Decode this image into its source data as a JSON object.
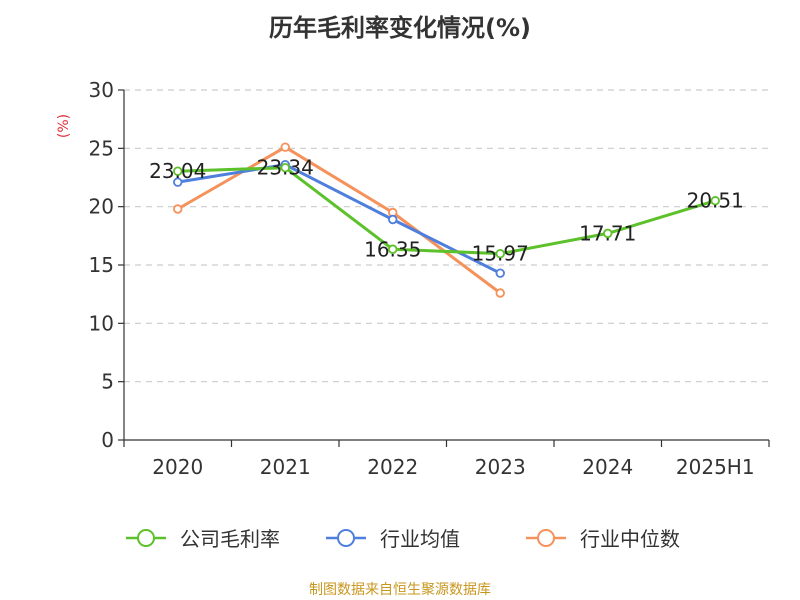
{
  "title": "历年毛利率变化情况(%)",
  "source": "制图数据来自恒生聚源数据库",
  "colors": {
    "axis": "#333333",
    "grid": "#cccccc",
    "ylabel": "#e0303a",
    "source": "#c8961e"
  },
  "chart_data": {
    "type": "line",
    "title": "历年毛利率变化情况(%)",
    "ylabel": "(%)",
    "xlabel": "",
    "categories": [
      "2020",
      "2021",
      "2022",
      "2023",
      "2024",
      "2025H1"
    ],
    "ylim": [
      0,
      30
    ],
    "yticks": [
      0,
      5,
      10,
      15,
      20,
      25,
      30
    ],
    "grid": true,
    "legend_position": "bottom",
    "series": [
      {
        "name": "公司毛利率",
        "color": "#5cc12a",
        "values": [
          23.04,
          23.34,
          16.35,
          15.97,
          17.71,
          20.51
        ],
        "labels": [
          "23.04",
          "23.34",
          "16.35",
          "15.97",
          "17.71",
          "20.51"
        ]
      },
      {
        "name": "行业均值",
        "color": "#4f7fdc",
        "values": [
          22.1,
          23.6,
          18.9,
          14.3,
          null,
          null
        ]
      },
      {
        "name": "行业中位数",
        "color": "#f5915a",
        "values": [
          19.8,
          25.1,
          19.5,
          12.6,
          null,
          null
        ]
      }
    ]
  }
}
